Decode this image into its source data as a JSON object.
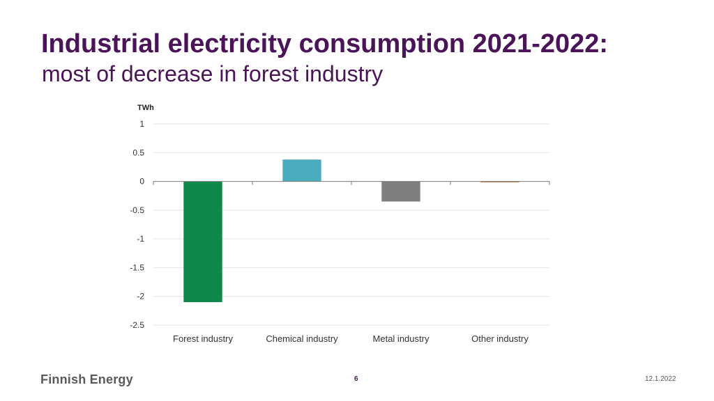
{
  "slide": {
    "title": "Industrial electricity consumption 2021-2022:",
    "subtitle": "most of decrease in forest industry"
  },
  "chart_data": {
    "type": "bar",
    "unit_label": "TWh",
    "categories": [
      "Forest industry",
      "Chemical industry",
      "Metal industry",
      "Other industry"
    ],
    "values": [
      -2.1,
      0.38,
      -0.35,
      -0.02
    ],
    "colors": [
      "#0e874a",
      "#4aacbd",
      "#7f7f7f",
      "#c8956b"
    ],
    "ylim": [
      -2.5,
      1
    ],
    "yticks": [
      1,
      0.5,
      0,
      -0.5,
      -1,
      -1.5,
      -2,
      -2.5
    ],
    "ytick_labels": [
      "1",
      "0.5",
      "0",
      "-0.5",
      "-1",
      "-1.5",
      "-2",
      "-2.5"
    ],
    "grid": true
  },
  "footer": {
    "brand": "Finnish Energy",
    "page_number": "6",
    "date": "12.1.2022"
  }
}
